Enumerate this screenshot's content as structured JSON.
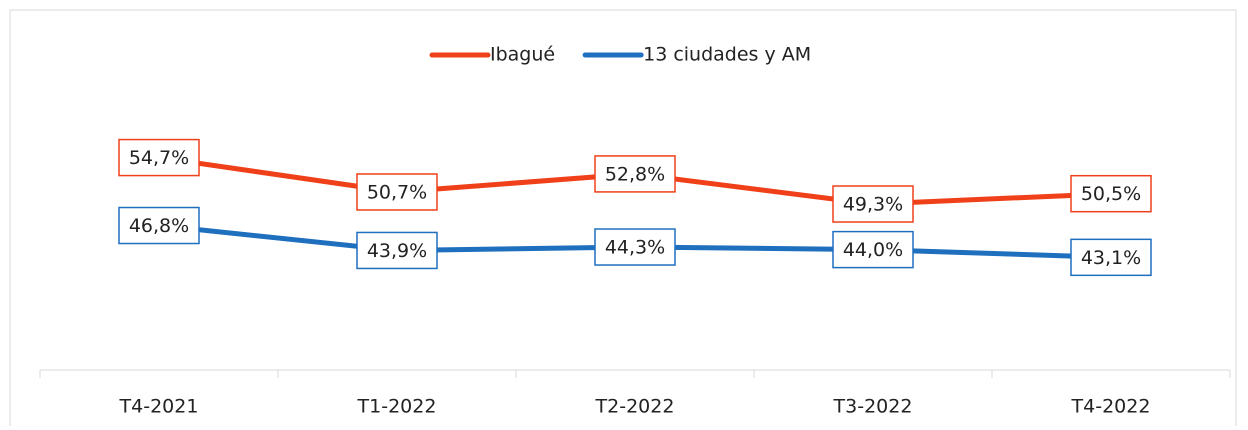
{
  "chart_data": {
    "type": "line",
    "categories": [
      "T4-2021",
      "T1-2022",
      "T2-2022",
      "T3-2022",
      "T4-2022"
    ],
    "series": [
      {
        "name": "Ibagué",
        "color": "#f0401a",
        "values": [
          54.7,
          50.7,
          52.8,
          49.3,
          50.5
        ],
        "value_labels": [
          "54,7%",
          "50,7%",
          "52,8%",
          "49,3%",
          "50,5%"
        ]
      },
      {
        "name": "13 ciudades y AM",
        "color": "#1f6fbf",
        "values": [
          46.8,
          43.9,
          44.3,
          44.0,
          43.1
        ],
        "value_labels": [
          "46,8%",
          "43,9%",
          "44,3%",
          "44,0%",
          "43,1%"
        ]
      }
    ],
    "ylim": [
      30,
      60
    ],
    "legend": "top"
  }
}
